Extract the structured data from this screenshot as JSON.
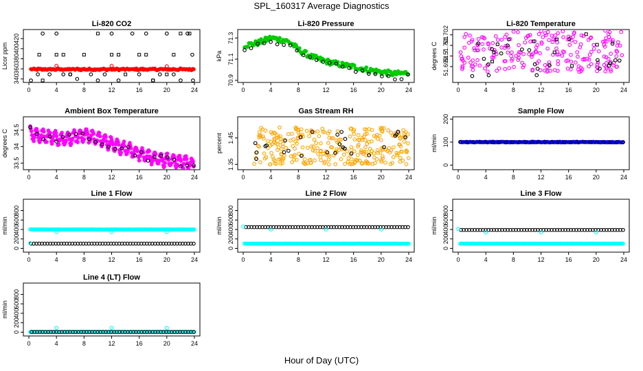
{
  "figure": {
    "title": "SPL_160317  Average Diagnostics",
    "xlabel": "Hour of Day (UTC)"
  },
  "chart_data": [
    {
      "type": "scatter",
      "title": "Li-820 CO2",
      "ylabel": "Licor ppm",
      "xlim": [
        -0.8,
        24.8
      ],
      "ylim": [
        333,
        438
      ],
      "xticks": [
        0,
        4,
        8,
        12,
        16,
        20,
        24
      ],
      "yticks": [
        340,
        360,
        380,
        400,
        420
      ],
      "ytick_labels": [
        "340",
        "360",
        "380",
        "400",
        "420"
      ],
      "style": "bar",
      "series": [
        {
          "color": "#ff0000",
          "gen": "band",
          "x0": 0.3,
          "x1": 23.9,
          "base": 359,
          "amp": 0.5,
          "jit": 1.5,
          "n": 160
        },
        {
          "color": "#000000",
          "shape": "circle",
          "points": [
            [
              0.3,
              337
            ],
            [
              1.3,
              349
            ],
            [
              2,
              430
            ],
            [
              3,
              349
            ],
            [
              4,
              430
            ],
            [
              5,
              349
            ],
            [
              6,
              349
            ],
            [
              7,
              340
            ],
            [
              9,
              349
            ],
            [
              10,
              337
            ],
            [
              11,
              349
            ],
            [
              12,
              430
            ],
            [
              13,
              337
            ],
            [
              15,
              430
            ],
            [
              16,
              349
            ],
            [
              17,
              430
            ],
            [
              18,
              337
            ],
            [
              19,
              349
            ],
            [
              20,
              430
            ],
            [
              21,
              349
            ],
            [
              22,
              337
            ],
            [
              23,
              430
            ],
            [
              23.7,
              388
            ],
            [
              23.8,
              337
            ]
          ]
        },
        {
          "color": "#000000",
          "shape": "square",
          "points": [
            [
              1.5,
              388
            ],
            [
              2,
              337
            ],
            [
              4,
              388
            ],
            [
              5,
              388
            ],
            [
              6,
              349
            ],
            [
              8,
              388
            ],
            [
              10,
              430
            ],
            [
              12,
              388
            ],
            [
              13,
              388
            ],
            [
              14,
              349
            ],
            [
              16,
              388
            ],
            [
              17,
              388
            ],
            [
              18,
              337
            ],
            [
              20,
              349
            ],
            [
              21,
              388
            ],
            [
              22,
              430
            ],
            [
              23.3,
              430
            ]
          ]
        },
        {
          "color": "#ff0000",
          "shape": "circle",
          "points": [
            [
              4,
              366
            ],
            [
              12,
              366
            ],
            [
              20,
              365
            ]
          ]
        }
      ]
    },
    {
      "type": "scatter",
      "title": "Li-820 Pressure",
      "ylabel": "kPa",
      "xlim": [
        -0.8,
        24.8
      ],
      "ylim": [
        70.88,
        71.38
      ],
      "xticks": [
        0,
        4,
        8,
        12,
        16,
        20,
        24
      ],
      "yticks": [
        70.9,
        71.1,
        71.3
      ],
      "ytick_labels": [
        "70.9",
        "71.1",
        "71.3"
      ],
      "series": [
        {
          "color": "#00cc00",
          "gen": "curve",
          "knots": [
            [
              0,
              71.23
            ],
            [
              2,
              71.25
            ],
            [
              4,
              71.3
            ],
            [
              6,
              71.28
            ],
            [
              7,
              71.25
            ],
            [
              8,
              71.19
            ],
            [
              10,
              71.12
            ],
            [
              12,
              71.08
            ],
            [
              14,
              71.05
            ],
            [
              16,
              71.03
            ],
            [
              18,
              71.0
            ],
            [
              20,
              70.98
            ],
            [
              22,
              70.96
            ],
            [
              24,
              70.97
            ]
          ],
          "jit": 0.025,
          "n": 150
        },
        {
          "color": "#000000",
          "shape": "circle",
          "gen": "curve",
          "knots": [
            [
              0,
              71.2
            ],
            [
              2,
              71.23
            ],
            [
              4,
              71.27
            ],
            [
              6,
              71.25
            ],
            [
              8,
              71.16
            ],
            [
              10,
              71.09
            ],
            [
              12,
              71.06
            ],
            [
              14,
              71.03
            ],
            [
              16,
              71.0
            ],
            [
              18,
              70.97
            ],
            [
              20,
              70.94
            ],
            [
              22,
              70.91
            ],
            [
              24,
              70.95
            ]
          ],
          "jit": 0.02,
          "n": 26
        }
      ]
    },
    {
      "type": "scatter",
      "title": "Li-820 Temperature",
      "ylabel": "degrees C",
      "xlim": [
        -0.8,
        24.8
      ],
      "ylim": [
        51.6975,
        51.7025
      ],
      "xticks": [
        0,
        4,
        8,
        12,
        16,
        20,
        24
      ],
      "yticks": [
        51.699,
        51.7,
        51.701,
        51.702
      ],
      "ytick_labels": [
        "51.699",
        "51.7",
        "51.701",
        "51.702"
      ],
      "series": [
        {
          "color": "#ff00ff",
          "shape": "circle",
          "gen": "uniform",
          "x0": 0.3,
          "x1": 23.9,
          "y0": 51.6985,
          "y1": 51.7024,
          "n": 230
        },
        {
          "color": "#000000",
          "shape": "circle",
          "gen": "uniform",
          "x0": 0.3,
          "x1": 23.9,
          "y0": 51.698,
          "y1": 51.702,
          "n": 24
        },
        {
          "color": "#000000",
          "shape": "square",
          "gen": "uniform",
          "x0": 0.3,
          "x1": 23.9,
          "y0": 51.699,
          "y1": 51.7022,
          "n": 8
        }
      ]
    },
    {
      "type": "scatter",
      "title": "Ambient Box Temperature",
      "ylabel": "degrees C",
      "xlim": [
        -0.8,
        24.8
      ],
      "ylim": [
        33.3,
        34.9
      ],
      "xticks": [
        0,
        4,
        8,
        12,
        16,
        20,
        24
      ],
      "yticks": [
        33.5,
        34,
        34.5
      ],
      "ytick_labels": [
        "33.5",
        "34",
        "34.5"
      ],
      "series": [
        {
          "color": "#ff00ff",
          "gen": "osc",
          "knots": [
            [
              0,
              34.4
            ],
            [
              3,
              34.3
            ],
            [
              5,
              34.2
            ],
            [
              8,
              34.35
            ],
            [
              10,
              34.25
            ],
            [
              13,
              34.0
            ],
            [
              16,
              33.8
            ],
            [
              19,
              33.6
            ],
            [
              22,
              33.55
            ],
            [
              24,
              33.45
            ]
          ],
          "amp": 0.18,
          "period": 0.9,
          "jit": 0.05,
          "n": 280
        },
        {
          "color": "#000000",
          "shape": "circle",
          "gen": "curve",
          "knots": [
            [
              0,
              34.5
            ],
            [
              3,
              34.3
            ],
            [
              5,
              34.15
            ],
            [
              8,
              34.4
            ],
            [
              10,
              34.25
            ],
            [
              13,
              34.0
            ],
            [
              16,
              33.8
            ],
            [
              19,
              33.6
            ],
            [
              22,
              33.55
            ],
            [
              24,
              33.45
            ]
          ],
          "jit": 0.15,
          "n": 26
        }
      ]
    },
    {
      "type": "scatter",
      "title": "Gas Stream RH",
      "ylabel": "percent",
      "xlim": [
        -0.8,
        24.8
      ],
      "ylim": [
        1.33,
        1.53
      ],
      "xticks": [
        0,
        4,
        8,
        12,
        16,
        20,
        24
      ],
      "yticks": [
        1.35,
        1.45
      ],
      "ytick_labels": [
        "1.35",
        "1.45"
      ],
      "series": [
        {
          "color": "#ffa500",
          "shape": "circle",
          "gen": "uniform",
          "x0": 1.5,
          "x1": 24,
          "y0": 1.35,
          "y1": 1.49,
          "n": 300
        },
        {
          "color": "#000000",
          "shape": "circle",
          "gen": "uniform",
          "x0": 1.5,
          "x1": 24,
          "y0": 1.36,
          "y1": 1.48,
          "n": 26
        }
      ]
    },
    {
      "type": "scatter",
      "title": "Sample Flow",
      "ylabel": "ml/min",
      "xlim": [
        -0.8,
        24.8
      ],
      "ylim": [
        -20,
        210
      ],
      "xticks": [
        0,
        4,
        8,
        12,
        16,
        20,
        24
      ],
      "yticks": [
        0,
        100,
        200
      ],
      "ytick_labels": [
        "0",
        "100",
        "200"
      ],
      "series": [
        {
          "color": "#0000ff",
          "shape": "circle",
          "gen": "band",
          "x0": 0.3,
          "x1": 23.9,
          "base": 100,
          "amp": 0,
          "jit": 1.5,
          "n": 200
        },
        {
          "color": "#000000",
          "shape": "circle",
          "gen": "band",
          "x0": 0.3,
          "x1": 23.9,
          "base": 100,
          "amp": 0,
          "jit": 0.5,
          "n": 26
        }
      ]
    },
    {
      "type": "scatter",
      "title": "Line 1 Flow",
      "ylabel": "ml/min",
      "xlim": [
        -0.8,
        24.8
      ],
      "ylim": [
        -80,
        1040
      ],
      "xticks": [
        0,
        4,
        8,
        12,
        16,
        20,
        24
      ],
      "yticks": [
        0,
        200,
        400,
        600,
        800
      ],
      "ytick_labels": [
        "0",
        "200",
        "400",
        "600",
        "800"
      ],
      "series": [
        {
          "color": "#00ffff",
          "shape": "circle",
          "gen": "band",
          "x0": 0.2,
          "x1": 24,
          "base": 400,
          "amp": 0,
          "jit": 2,
          "n": 200
        },
        {
          "color": "#000000",
          "shape": "circle",
          "gen": "band",
          "x0": 0.3,
          "x1": 23.9,
          "base": 100,
          "amp": 0,
          "jit": 0,
          "n": 60
        },
        {
          "color": "#00ffff",
          "shape": "circle",
          "points": [
            [
              0.2,
              110
            ],
            [
              4,
              345
            ],
            [
              12,
              345
            ],
            [
              20,
              345
            ]
          ]
        }
      ]
    },
    {
      "type": "scatter",
      "title": "Line 2 Flow",
      "ylabel": "ml/min",
      "xlim": [
        -0.8,
        24.8
      ],
      "ylim": [
        -80,
        1040
      ],
      "xticks": [
        0,
        4,
        8,
        12,
        16,
        20,
        24
      ],
      "yticks": [
        0,
        200,
        400,
        600,
        800
      ],
      "ytick_labels": [
        "0",
        "200",
        "400",
        "600",
        "800"
      ],
      "series": [
        {
          "color": "#00ffff",
          "shape": "circle",
          "gen": "band",
          "x0": 0.2,
          "x1": 24,
          "base": 100,
          "amp": 0,
          "jit": 2,
          "n": 200
        },
        {
          "color": "#000000",
          "shape": "circle",
          "gen": "band",
          "x0": 0.4,
          "x1": 23.9,
          "base": 450,
          "amp": 0,
          "jit": 0,
          "n": 60
        },
        {
          "color": "#00ffff",
          "shape": "circle",
          "points": [
            [
              0,
              460
            ],
            [
              4,
              400
            ],
            [
              12,
              400
            ],
            [
              20,
              400
            ]
          ]
        }
      ]
    },
    {
      "type": "scatter",
      "title": "Line 3 Flow",
      "ylabel": "ml/min",
      "xlim": [
        -0.8,
        24.8
      ],
      "ylim": [
        -80,
        1040
      ],
      "xticks": [
        0,
        4,
        8,
        12,
        16,
        20,
        24
      ],
      "yticks": [
        0,
        200,
        400,
        600,
        800
      ],
      "ytick_labels": [
        "0",
        "200",
        "400",
        "600",
        "800"
      ],
      "series": [
        {
          "color": "#00ffff",
          "shape": "circle",
          "gen": "band",
          "x0": 0.3,
          "x1": 23.9,
          "base": 100,
          "amp": 0,
          "jit": 2,
          "n": 200
        },
        {
          "color": "#000000",
          "shape": "circle",
          "gen": "band",
          "x0": 0.4,
          "x1": 23.9,
          "base": 390,
          "amp": 0,
          "jit": 0,
          "n": 60
        },
        {
          "color": "#00ffff",
          "shape": "circle",
          "points": [
            [
              0,
              410
            ],
            [
              4,
              340
            ],
            [
              12,
              340
            ],
            [
              20,
              340
            ]
          ]
        }
      ]
    },
    {
      "type": "scatter",
      "title": "Line 4 (LT) Flow",
      "ylabel": "ml/min",
      "xlim": [
        -0.8,
        24.8
      ],
      "ylim": [
        -80,
        1040
      ],
      "xticks": [
        0,
        4,
        8,
        12,
        16,
        20,
        24
      ],
      "yticks": [
        0,
        200,
        400,
        600,
        800
      ],
      "ytick_labels": [
        "0",
        "200",
        "400",
        "600",
        "800"
      ],
      "series": [
        {
          "color": "#00ffff",
          "shape": "circle",
          "gen": "band",
          "x0": 0.2,
          "x1": 24,
          "base": 5,
          "amp": 0,
          "jit": 2,
          "n": 200
        },
        {
          "color": "#000000",
          "shape": "circle",
          "gen": "band",
          "x0": 0.4,
          "x1": 23.9,
          "base": 5,
          "amp": 0,
          "jit": 0,
          "n": 60
        },
        {
          "color": "#00ffff",
          "shape": "circle",
          "points": [
            [
              4,
              90
            ],
            [
              12,
              90
            ],
            [
              20,
              90
            ]
          ]
        }
      ]
    }
  ]
}
